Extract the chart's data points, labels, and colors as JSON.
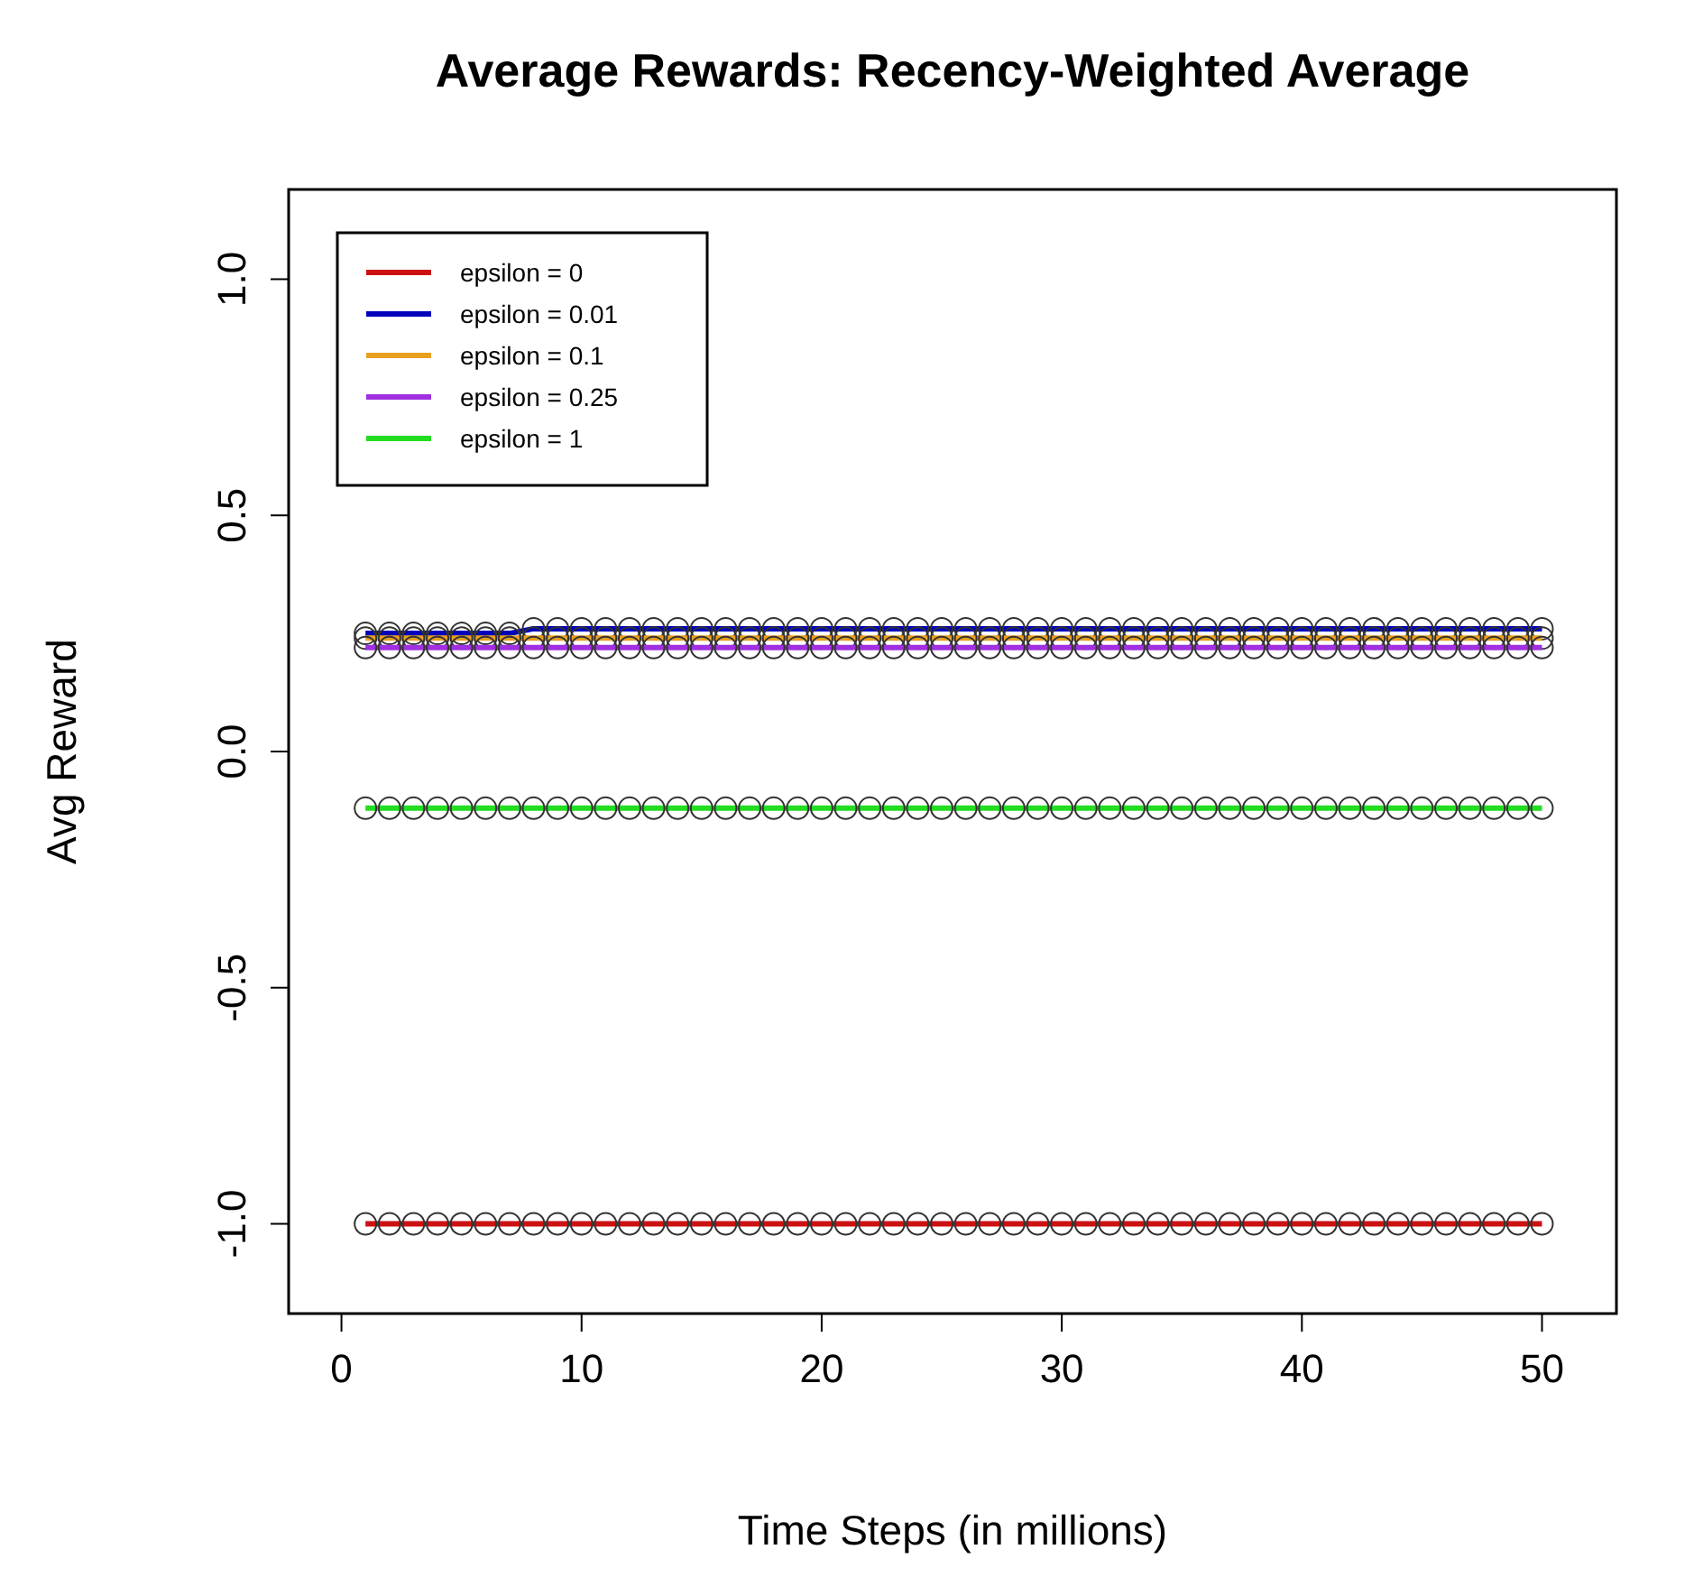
{
  "chart_data": {
    "type": "line",
    "title": "Average Rewards: Recency-Weighted Average",
    "xlabel": "Time Steps (in millions)",
    "ylabel": "Avg Reward",
    "x": [
      1,
      2,
      3,
      4,
      5,
      6,
      7,
      8,
      9,
      10,
      11,
      12,
      13,
      14,
      15,
      16,
      17,
      18,
      19,
      20,
      21,
      22,
      23,
      24,
      25,
      26,
      27,
      28,
      29,
      30,
      31,
      32,
      33,
      34,
      35,
      36,
      37,
      38,
      39,
      40,
      41,
      42,
      43,
      44,
      45,
      46,
      47,
      48,
      49,
      50
    ],
    "series": [
      {
        "name": "epsilon = 0",
        "color": "#cc1111",
        "values": [
          -1,
          -1,
          -1,
          -1,
          -1,
          -1,
          -1,
          -1,
          -1,
          -1,
          -1,
          -1,
          -1,
          -1,
          -1,
          -1,
          -1,
          -1,
          -1,
          -1,
          -1,
          -1,
          -1,
          -1,
          -1,
          -1,
          -1,
          -1,
          -1,
          -1,
          -1,
          -1,
          -1,
          -1,
          -1,
          -1,
          -1,
          -1,
          -1,
          -1,
          -1,
          -1,
          -1,
          -1,
          -1,
          -1,
          -1,
          -1,
          -1,
          -1
        ]
      },
      {
        "name": "epsilon = 0.01",
        "color": "#0000bb",
        "values": [
          0.25,
          0.25,
          0.25,
          0.25,
          0.25,
          0.25,
          0.25,
          0.26,
          0.26,
          0.26,
          0.26,
          0.26,
          0.26,
          0.26,
          0.26,
          0.26,
          0.26,
          0.26,
          0.26,
          0.26,
          0.26,
          0.26,
          0.26,
          0.26,
          0.26,
          0.26,
          0.26,
          0.26,
          0.26,
          0.26,
          0.26,
          0.26,
          0.26,
          0.26,
          0.26,
          0.26,
          0.26,
          0.26,
          0.26,
          0.26,
          0.26,
          0.26,
          0.26,
          0.26,
          0.26,
          0.26,
          0.26,
          0.26,
          0.26,
          0.26
        ]
      },
      {
        "name": "epsilon = 0.1",
        "color": "#e8a020",
        "values": [
          0.24,
          0.24,
          0.24,
          0.24,
          0.24,
          0.24,
          0.24,
          0.24,
          0.24,
          0.24,
          0.24,
          0.24,
          0.24,
          0.24,
          0.24,
          0.24,
          0.24,
          0.24,
          0.24,
          0.24,
          0.24,
          0.24,
          0.24,
          0.24,
          0.24,
          0.24,
          0.24,
          0.24,
          0.24,
          0.24,
          0.24,
          0.24,
          0.24,
          0.24,
          0.24,
          0.24,
          0.24,
          0.24,
          0.24,
          0.24,
          0.24,
          0.24,
          0.24,
          0.24,
          0.24,
          0.24,
          0.24,
          0.24,
          0.24,
          0.24
        ]
      },
      {
        "name": "epsilon = 0.25",
        "color": "#a030e0",
        "values": [
          0.22,
          0.22,
          0.22,
          0.22,
          0.22,
          0.22,
          0.22,
          0.22,
          0.22,
          0.22,
          0.22,
          0.22,
          0.22,
          0.22,
          0.22,
          0.22,
          0.22,
          0.22,
          0.22,
          0.22,
          0.22,
          0.22,
          0.22,
          0.22,
          0.22,
          0.22,
          0.22,
          0.22,
          0.22,
          0.22,
          0.22,
          0.22,
          0.22,
          0.22,
          0.22,
          0.22,
          0.22,
          0.22,
          0.22,
          0.22,
          0.22,
          0.22,
          0.22,
          0.22,
          0.22,
          0.22,
          0.22,
          0.22,
          0.22,
          0.22
        ]
      },
      {
        "name": "epsilon = 1",
        "color": "#22dd22",
        "values": [
          -0.12,
          -0.12,
          -0.12,
          -0.12,
          -0.12,
          -0.12,
          -0.12,
          -0.12,
          -0.12,
          -0.12,
          -0.12,
          -0.12,
          -0.12,
          -0.12,
          -0.12,
          -0.12,
          -0.12,
          -0.12,
          -0.12,
          -0.12,
          -0.12,
          -0.12,
          -0.12,
          -0.12,
          -0.12,
          -0.12,
          -0.12,
          -0.12,
          -0.12,
          -0.12,
          -0.12,
          -0.12,
          -0.12,
          -0.12,
          -0.12,
          -0.12,
          -0.12,
          -0.12,
          -0.12,
          -0.12,
          -0.12,
          -0.12,
          -0.12,
          -0.12,
          -0.12,
          -0.12,
          -0.12,
          -0.12,
          -0.12,
          -0.12
        ]
      }
    ],
    "xlim": [
      -2.2,
      53.1
    ],
    "xticks": [
      0,
      10,
      20,
      30,
      40,
      50
    ],
    "ylim": [
      -1.19,
      1.19
    ],
    "yticks": [
      {
        "value": -1,
        "label": "-1.0"
      },
      {
        "value": -0.5,
        "label": "-0.5"
      },
      {
        "value": 0,
        "label": "0.0"
      },
      {
        "value": 0.5,
        "label": "0.5"
      },
      {
        "value": 1,
        "label": "1.0"
      }
    ],
    "grid": false,
    "legend": "top left",
    "marker": "circle",
    "line_style": "solid"
  }
}
